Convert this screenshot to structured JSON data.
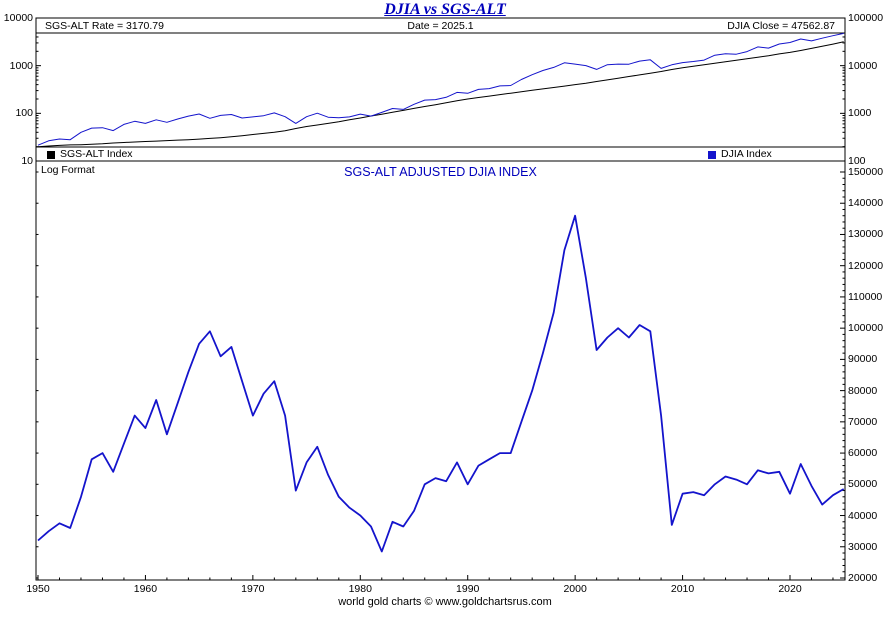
{
  "title": "DJIA vs SGS-ALT",
  "footer": "world gold charts © www.goldchartsrus.com",
  "colors": {
    "title": "#0000BB",
    "line_blue": "#1414CC",
    "line_black": "#000000",
    "axis": "#000000"
  },
  "top_chart": {
    "header": {
      "left": "SGS-ALT Rate = 3170.79",
      "center": "Date = 2025.1",
      "right": "DJIA Close = 47562.87"
    },
    "legend": [
      {
        "label": "SGS-ALT Index",
        "color": "#000000"
      },
      {
        "label": "DJIA Index",
        "color": "#1414CC"
      }
    ],
    "log_format_label": "Log Format",
    "axis": {
      "left_ticks": [
        10000,
        1000,
        100,
        10
      ],
      "right_ticks": [
        100000,
        10000,
        1000,
        100
      ]
    }
  },
  "bottom_chart": {
    "title": "SGS-ALT ADJUSTED DJIA INDEX",
    "axis": {
      "right_ticks": [
        150000,
        140000,
        130000,
        120000,
        110000,
        100000,
        90000,
        80000,
        70000,
        60000,
        50000,
        40000,
        30000,
        20000
      ],
      "x_ticks": [
        1950,
        1960,
        1970,
        1980,
        1990,
        2000,
        2010,
        2020
      ]
    }
  },
  "chart_data": [
    {
      "type": "line",
      "title": "DJIA vs SGS-ALT",
      "x_range": [
        1950,
        2026
      ],
      "y_axis_left": {
        "scale": "log",
        "range": [
          10,
          10000
        ],
        "series": "SGS-ALT Index"
      },
      "y_axis_right": {
        "scale": "log",
        "range": [
          100,
          100000
        ],
        "series": "DJIA Index"
      },
      "x": [
        1950,
        1951,
        1952,
        1953,
        1954,
        1955,
        1956,
        1957,
        1958,
        1959,
        1960,
        1961,
        1962,
        1963,
        1964,
        1965,
        1966,
        1967,
        1968,
        1969,
        1970,
        1971,
        1972,
        1973,
        1974,
        1975,
        1976,
        1977,
        1978,
        1979,
        1980,
        1981,
        1982,
        1983,
        1984,
        1985,
        1986,
        1987,
        1988,
        1989,
        1990,
        1991,
        1992,
        1993,
        1994,
        1995,
        1996,
        1997,
        1998,
        1999,
        2000,
        2001,
        2002,
        2003,
        2004,
        2005,
        2006,
        2007,
        2008,
        2009,
        2010,
        2011,
        2012,
        2013,
        2014,
        2015,
        2016,
        2017,
        2018,
        2019,
        2020,
        2021,
        2022,
        2023,
        2024,
        2025
      ],
      "series": [
        {
          "id": "sgs-alt-line",
          "name": "SGS-ALT Index",
          "axis": "left",
          "color": "#000000",
          "values": [
            20.0,
            20.6,
            21.2,
            21.8,
            22.0,
            22.4,
            23.0,
            23.8,
            24.4,
            25.0,
            25.6,
            26.2,
            26.8,
            27.4,
            28.0,
            28.8,
            29.8,
            30.8,
            32.2,
            34.0,
            36.0,
            38.0,
            40.0,
            43.0,
            48.0,
            53.0,
            57.0,
            61.5,
            66.5,
            73.0,
            80.0,
            88.0,
            96.0,
            105,
            115,
            127,
            139,
            152,
            166,
            183,
            200,
            215,
            230,
            247,
            264,
            283,
            304,
            325,
            349,
            373,
            400,
            429,
            465,
            504,
            546,
            592,
            641,
            695,
            753,
            830,
            900,
            975,
            1048,
            1127,
            1211,
            1302,
            1400,
            1505,
            1618,
            1767,
            1900,
            2080,
            2300,
            2550,
            2840,
            3170.79
          ]
        },
        {
          "id": "djia-line",
          "name": "DJIA Index",
          "axis": "right",
          "color": "#1414CC",
          "values": [
            215,
            265,
            290,
            280,
            400,
            490,
            500,
            435,
            585,
            680,
            615,
            730,
            650,
            760,
            875,
            970,
            785,
            905,
            945,
            800,
            840,
            890,
            1020,
            850,
            615,
            850,
            1005,
            830,
            805,
            840,
            965,
            875,
            1045,
            1260,
            1210,
            1545,
            1895,
            1940,
            2170,
            2755,
            2635,
            3170,
            3300,
            3755,
            3835,
            5115,
            6450,
            7910,
            9180,
            11500,
            10790,
            10020,
            8340,
            10455,
            10785,
            10715,
            12460,
            13265,
            8775,
            10430,
            11575,
            12220,
            13105,
            16575,
            17825,
            17425,
            19760,
            24720,
            23330,
            28540,
            30605,
            36340,
            33150,
            37690,
            42540,
            47562.87
          ]
        }
      ]
    },
    {
      "type": "line",
      "title": "SGS-ALT ADJUSTED DJIA INDEX",
      "x_range": [
        1950,
        2026
      ],
      "ylim": [
        20000,
        150000
      ],
      "color": "#1414CC",
      "x": [
        1950,
        1951,
        1952,
        1953,
        1954,
        1955,
        1956,
        1957,
        1958,
        1959,
        1960,
        1961,
        1962,
        1963,
        1964,
        1965,
        1966,
        1967,
        1968,
        1969,
        1970,
        1971,
        1972,
        1973,
        1974,
        1975,
        1976,
        1977,
        1978,
        1979,
        1980,
        1981,
        1982,
        1983,
        1984,
        1985,
        1986,
        1987,
        1988,
        1989,
        1990,
        1991,
        1992,
        1993,
        1994,
        1995,
        1996,
        1997,
        1998,
        1999,
        2000,
        2001,
        2002,
        2003,
        2004,
        2005,
        2006,
        2007,
        2008,
        2009,
        2010,
        2011,
        2012,
        2013,
        2014,
        2015,
        2016,
        2017,
        2018,
        2019,
        2020,
        2021,
        2022,
        2023,
        2024,
        2025
      ],
      "values": [
        32000,
        35000,
        37500,
        36000,
        46000,
        58000,
        60000,
        54000,
        63000,
        72000,
        68000,
        77000,
        66000,
        76000,
        86000,
        95000,
        99000,
        91000,
        94000,
        83000,
        72000,
        79000,
        83000,
        72000,
        48000,
        57000,
        62000,
        53000,
        46000,
        42500,
        40000,
        36500,
        28500,
        38000,
        36500,
        41500,
        50000,
        52000,
        51000,
        57000,
        50000,
        56000,
        58000,
        60000,
        60000,
        70000,
        80000,
        92000,
        105000,
        125000,
        136000,
        116000,
        93000,
        97000,
        100000,
        97000,
        101000,
        99000,
        72000,
        37000,
        47000,
        47500,
        46500,
        50000,
        52500,
        51500,
        50000,
        54500,
        53500,
        54000,
        47000,
        56500,
        49500,
        43500,
        46500,
        48500
      ]
    }
  ]
}
